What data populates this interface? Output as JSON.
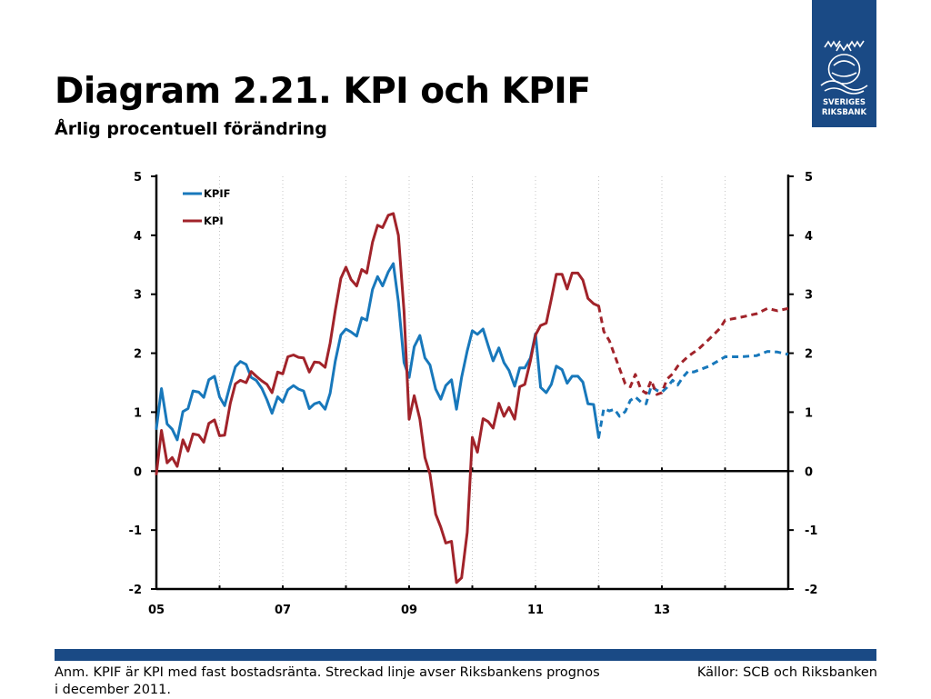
{
  "title": "Diagram 2.21. KPI och KPIF",
  "subtitle": "Årlig procentuell förändring",
  "logo": {
    "line1": "SVERIGES",
    "line2": "RIKSBANK",
    "color": "#1a4a85"
  },
  "note": "Anm. KPIF är KPI med fast bostadsränta. Streckad linje avser Riksbankens prognos i december 2011.",
  "sources": "Källor: SCB och Riksbanken",
  "chart_data": {
    "type": "line",
    "title": "",
    "xlabel": "",
    "ylabel": "",
    "ylim": [
      -2,
      5
    ],
    "yticks_left": [
      "5",
      "4",
      "3",
      "2",
      "1",
      "0",
      "-1",
      "-2"
    ],
    "yticks_right": [
      "5",
      "4",
      "3",
      "2",
      "1",
      "0",
      "-1",
      "-2"
    ],
    "xtick_labels": [
      "05",
      "07",
      "09",
      "11",
      "13"
    ],
    "legend_position": "top-left",
    "grid": "vertical dotted",
    "x_range": [
      2005,
      2015
    ],
    "notes": "x values are decimal years; outcome lines are solid, forecast lines (from Dec 2011) are dashed",
    "series": [
      {
        "name": "KPIF",
        "color": "#1878bb",
        "values": [
          [
            2005.0,
            0.72
          ],
          [
            2005.08,
            1.4
          ],
          [
            2005.17,
            0.8
          ],
          [
            2005.25,
            0.71
          ],
          [
            2005.33,
            0.53
          ],
          [
            2005.42,
            1.01
          ],
          [
            2005.5,
            1.06
          ],
          [
            2005.58,
            1.36
          ],
          [
            2005.67,
            1.34
          ],
          [
            2005.75,
            1.25
          ],
          [
            2005.83,
            1.55
          ],
          [
            2005.92,
            1.61
          ],
          [
            2006.0,
            1.26
          ],
          [
            2006.08,
            1.11
          ],
          [
            2006.17,
            1.47
          ],
          [
            2006.25,
            1.77
          ],
          [
            2006.33,
            1.86
          ],
          [
            2006.42,
            1.81
          ],
          [
            2006.5,
            1.59
          ],
          [
            2006.58,
            1.54
          ],
          [
            2006.67,
            1.4
          ],
          [
            2006.75,
            1.21
          ],
          [
            2006.83,
            0.98
          ],
          [
            2006.92,
            1.26
          ],
          [
            2007.0,
            1.17
          ],
          [
            2007.08,
            1.38
          ],
          [
            2007.17,
            1.45
          ],
          [
            2007.25,
            1.39
          ],
          [
            2007.33,
            1.36
          ],
          [
            2007.42,
            1.06
          ],
          [
            2007.5,
            1.14
          ],
          [
            2007.58,
            1.17
          ],
          [
            2007.67,
            1.05
          ],
          [
            2007.75,
            1.32
          ],
          [
            2007.83,
            1.86
          ],
          [
            2007.92,
            2.31
          ],
          [
            2008.0,
            2.41
          ],
          [
            2008.08,
            2.36
          ],
          [
            2008.17,
            2.29
          ],
          [
            2008.25,
            2.6
          ],
          [
            2008.33,
            2.56
          ],
          [
            2008.42,
            3.08
          ],
          [
            2008.5,
            3.3
          ],
          [
            2008.58,
            3.14
          ],
          [
            2008.67,
            3.38
          ],
          [
            2008.75,
            3.52
          ],
          [
            2008.83,
            2.87
          ],
          [
            2008.92,
            1.84
          ],
          [
            2009.0,
            1.59
          ],
          [
            2009.08,
            2.11
          ],
          [
            2009.17,
            2.3
          ],
          [
            2009.25,
            1.92
          ],
          [
            2009.33,
            1.8
          ],
          [
            2009.42,
            1.39
          ],
          [
            2009.5,
            1.22
          ],
          [
            2009.58,
            1.45
          ],
          [
            2009.67,
            1.55
          ],
          [
            2009.75,
            1.05
          ],
          [
            2009.83,
            1.59
          ],
          [
            2009.92,
            2.04
          ],
          [
            2010.0,
            2.38
          ],
          [
            2010.08,
            2.32
          ],
          [
            2010.17,
            2.41
          ],
          [
            2010.25,
            2.13
          ],
          [
            2010.33,
            1.87
          ],
          [
            2010.42,
            2.09
          ],
          [
            2010.5,
            1.84
          ],
          [
            2010.58,
            1.71
          ],
          [
            2010.67,
            1.44
          ],
          [
            2010.75,
            1.75
          ],
          [
            2010.83,
            1.75
          ],
          [
            2010.92,
            1.92
          ],
          [
            2011.0,
            2.33
          ],
          [
            2011.08,
            1.42
          ],
          [
            2011.17,
            1.33
          ],
          [
            2011.25,
            1.47
          ],
          [
            2011.33,
            1.78
          ],
          [
            2011.42,
            1.72
          ],
          [
            2011.5,
            1.49
          ],
          [
            2011.58,
            1.61
          ],
          [
            2011.67,
            1.61
          ],
          [
            2011.75,
            1.51
          ],
          [
            2011.83,
            1.14
          ],
          [
            2011.92,
            1.13
          ],
          [
            2012.0,
            0.57
          ]
        ],
        "forecast": [
          [
            2012.0,
            0.57
          ],
          [
            2012.08,
            1.06
          ],
          [
            2012.17,
            1.02
          ],
          [
            2012.25,
            1.05
          ],
          [
            2012.33,
            0.93
          ],
          [
            2012.42,
            1.01
          ],
          [
            2012.5,
            1.2
          ],
          [
            2012.58,
            1.26
          ],
          [
            2012.67,
            1.17
          ],
          [
            2012.75,
            1.14
          ],
          [
            2012.83,
            1.44
          ],
          [
            2012.92,
            1.37
          ],
          [
            2013.0,
            1.34
          ],
          [
            2013.08,
            1.42
          ],
          [
            2013.17,
            1.54
          ],
          [
            2013.25,
            1.46
          ],
          [
            2013.33,
            1.59
          ],
          [
            2013.42,
            1.7
          ],
          [
            2013.5,
            1.68
          ],
          [
            2013.75,
            1.78
          ],
          [
            2014.0,
            1.94
          ],
          [
            2014.25,
            1.94
          ],
          [
            2014.5,
            1.96
          ],
          [
            2014.67,
            2.03
          ],
          [
            2014.83,
            2.02
          ],
          [
            2015.0,
            1.98
          ]
        ]
      },
      {
        "name": "KPI",
        "color": "#a1232a",
        "values": [
          [
            2005.0,
            -0.05
          ],
          [
            2005.08,
            0.69
          ],
          [
            2005.17,
            0.14
          ],
          [
            2005.25,
            0.23
          ],
          [
            2005.33,
            0.08
          ],
          [
            2005.42,
            0.53
          ],
          [
            2005.5,
            0.34
          ],
          [
            2005.58,
            0.63
          ],
          [
            2005.67,
            0.61
          ],
          [
            2005.75,
            0.49
          ],
          [
            2005.83,
            0.81
          ],
          [
            2005.92,
            0.87
          ],
          [
            2006.0,
            0.6
          ],
          [
            2006.08,
            0.61
          ],
          [
            2006.17,
            1.15
          ],
          [
            2006.25,
            1.48
          ],
          [
            2006.33,
            1.54
          ],
          [
            2006.42,
            1.5
          ],
          [
            2006.5,
            1.69
          ],
          [
            2006.58,
            1.61
          ],
          [
            2006.67,
            1.53
          ],
          [
            2006.75,
            1.47
          ],
          [
            2006.83,
            1.33
          ],
          [
            2006.92,
            1.68
          ],
          [
            2007.0,
            1.65
          ],
          [
            2007.08,
            1.94
          ],
          [
            2007.17,
            1.97
          ],
          [
            2007.25,
            1.93
          ],
          [
            2007.33,
            1.92
          ],
          [
            2007.42,
            1.68
          ],
          [
            2007.5,
            1.85
          ],
          [
            2007.58,
            1.84
          ],
          [
            2007.67,
            1.76
          ],
          [
            2007.75,
            2.17
          ],
          [
            2007.83,
            2.72
          ],
          [
            2007.92,
            3.27
          ],
          [
            2008.0,
            3.46
          ],
          [
            2008.08,
            3.25
          ],
          [
            2008.17,
            3.14
          ],
          [
            2008.25,
            3.42
          ],
          [
            2008.33,
            3.36
          ],
          [
            2008.42,
            3.88
          ],
          [
            2008.5,
            4.17
          ],
          [
            2008.58,
            4.13
          ],
          [
            2008.67,
            4.34
          ],
          [
            2008.75,
            4.37
          ],
          [
            2008.83,
            4.0
          ],
          [
            2008.92,
            2.71
          ],
          [
            2009.0,
            0.88
          ],
          [
            2009.08,
            1.28
          ],
          [
            2009.17,
            0.88
          ],
          [
            2009.25,
            0.23
          ],
          [
            2009.33,
            -0.05
          ],
          [
            2009.42,
            -0.73
          ],
          [
            2009.5,
            -0.95
          ],
          [
            2009.58,
            -1.22
          ],
          [
            2009.67,
            -1.19
          ],
          [
            2009.75,
            -1.89
          ],
          [
            2009.83,
            -1.81
          ],
          [
            2009.92,
            -1.04
          ],
          [
            2010.0,
            0.57
          ],
          [
            2010.08,
            0.32
          ],
          [
            2010.17,
            0.89
          ],
          [
            2010.25,
            0.84
          ],
          [
            2010.33,
            0.73
          ],
          [
            2010.42,
            1.15
          ],
          [
            2010.5,
            0.93
          ],
          [
            2010.58,
            1.08
          ],
          [
            2010.67,
            0.88
          ],
          [
            2010.75,
            1.43
          ],
          [
            2010.83,
            1.47
          ],
          [
            2010.92,
            1.87
          ],
          [
            2011.0,
            2.31
          ],
          [
            2011.08,
            2.47
          ],
          [
            2011.17,
            2.51
          ],
          [
            2011.25,
            2.92
          ],
          [
            2011.33,
            3.34
          ],
          [
            2011.42,
            3.34
          ],
          [
            2011.5,
            3.09
          ],
          [
            2011.58,
            3.36
          ],
          [
            2011.67,
            3.36
          ],
          [
            2011.75,
            3.24
          ],
          [
            2011.83,
            2.93
          ],
          [
            2011.92,
            2.84
          ],
          [
            2012.0,
            2.8
          ]
        ],
        "forecast": [
          [
            2012.0,
            2.8
          ],
          [
            2012.08,
            2.37
          ],
          [
            2012.17,
            2.21
          ],
          [
            2012.25,
            1.97
          ],
          [
            2012.33,
            1.74
          ],
          [
            2012.42,
            1.48
          ],
          [
            2012.5,
            1.43
          ],
          [
            2012.58,
            1.64
          ],
          [
            2012.67,
            1.38
          ],
          [
            2012.75,
            1.32
          ],
          [
            2012.83,
            1.54
          ],
          [
            2012.92,
            1.3
          ],
          [
            2013.0,
            1.33
          ],
          [
            2013.08,
            1.56
          ],
          [
            2013.17,
            1.65
          ],
          [
            2013.25,
            1.78
          ],
          [
            2013.42,
            1.95
          ],
          [
            2013.58,
            2.07
          ],
          [
            2013.75,
            2.24
          ],
          [
            2013.92,
            2.42
          ],
          [
            2014.0,
            2.56
          ],
          [
            2014.25,
            2.61
          ],
          [
            2014.5,
            2.67
          ],
          [
            2014.67,
            2.76
          ],
          [
            2014.83,
            2.72
          ],
          [
            2015.0,
            2.76
          ]
        ]
      }
    ]
  }
}
